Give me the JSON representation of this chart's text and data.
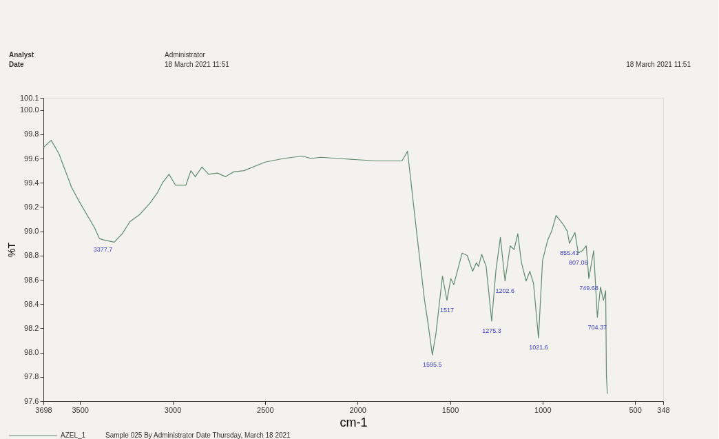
{
  "chart_data": {
    "type": "line",
    "xlabel": "cm-1",
    "ylabel": "%T",
    "xlim": [
      3698,
      348
    ],
    "xticks": [
      3698,
      3500,
      3000,
      2500,
      2000,
      1500,
      1000,
      500,
      348
    ],
    "ylim": [
      97.6,
      100.1
    ],
    "yticks": [
      97.6,
      97.8,
      {
        "value": 98.0,
        "label": "98.0"
      },
      98.2,
      98.4,
      98.6,
      98.8,
      {
        "value": 99.0,
        "label": "99.0"
      },
      99.2,
      99.4,
      99.6,
      99.8,
      {
        "value": 100.0,
        "label": "100.0"
      },
      100.1
    ],
    "grid": false,
    "legend": "bottom left",
    "line_style": "solid",
    "marker": "none",
    "series": [
      {
        "name": "AZEL_1",
        "color": "#5e8a6e",
        "x": [
          3698,
          3656,
          3614,
          3587,
          3545,
          3506,
          3464,
          3422,
          3395,
          3376,
          3315,
          3272,
          3230,
          3176,
          3123,
          3081,
          3054,
          3019,
          2984,
          2928,
          2901,
          2877,
          2841,
          2805,
          2757,
          2714,
          2670,
          2614,
          2500,
          2400,
          2300,
          2250,
          2200,
          2100,
          2000,
          1900,
          1800,
          1760,
          1730,
          1679,
          1638,
          1618,
          1596,
          1577,
          1541,
          1517,
          1496,
          1480,
          1435,
          1407,
          1378,
          1358,
          1346,
          1329,
          1305,
          1275,
          1252,
          1228,
          1203,
          1175,
          1154,
          1134,
          1114,
          1089,
          1069,
          1049,
          1022,
          1000,
          972,
          951,
          927,
          890,
          866,
          855,
          825,
          807,
          785,
          764,
          750,
          724,
          704,
          687,
          671,
          659,
          655,
          650
        ],
        "values": [
          99.69,
          99.75,
          99.64,
          99.53,
          99.36,
          99.25,
          99.14,
          99.03,
          98.94,
          98.93,
          98.91,
          98.98,
          99.08,
          99.14,
          99.23,
          99.32,
          99.4,
          99.47,
          99.38,
          99.38,
          99.5,
          99.45,
          99.53,
          99.47,
          99.48,
          99.45,
          99.49,
          99.5,
          99.57,
          99.6,
          99.62,
          99.6,
          99.61,
          99.6,
          99.59,
          99.58,
          99.58,
          99.58,
          99.66,
          98.97,
          98.43,
          98.23,
          97.98,
          98.15,
          98.63,
          98.43,
          98.61,
          98.56,
          98.82,
          98.8,
          98.67,
          98.74,
          98.71,
          98.81,
          98.71,
          98.26,
          98.68,
          98.95,
          98.59,
          98.88,
          98.85,
          98.98,
          98.74,
          98.59,
          98.67,
          98.57,
          98.12,
          98.76,
          98.93,
          99.0,
          99.13,
          99.06,
          99.0,
          98.9,
          98.99,
          98.82,
          98.84,
          98.88,
          98.61,
          98.84,
          98.29,
          98.54,
          98.43,
          98.51,
          97.81,
          97.66
        ]
      }
    ],
    "annotations": [
      "Analyst",
      "Date",
      "Administrator",
      "18 March 2021 11:51",
      "18 March 2021 11:51",
      "Sample 025 By Administrator Date Thursday, March 18 2021",
      {
        "text": "3377.7",
        "x": 3376,
        "y": 98.93
      },
      {
        "text": "1595.5",
        "x": 1596,
        "y": 97.98
      },
      {
        "text": "1517",
        "x": 1517,
        "y": 98.43
      },
      {
        "text": "1275.3",
        "x": 1275,
        "y": 98.26
      },
      {
        "text": "1202.6",
        "x": 1203,
        "y": 98.59
      },
      {
        "text": "1021.6",
        "x": 1022,
        "y": 98.12
      },
      {
        "text": "855.41",
        "x": 855,
        "y": 98.9
      },
      {
        "text": "807.08",
        "x": 807,
        "y": 98.82
      },
      {
        "text": "749.68",
        "x": 750,
        "y": 98.61
      },
      {
        "text": "704.37",
        "x": 704,
        "y": 98.29
      }
    ]
  }
}
